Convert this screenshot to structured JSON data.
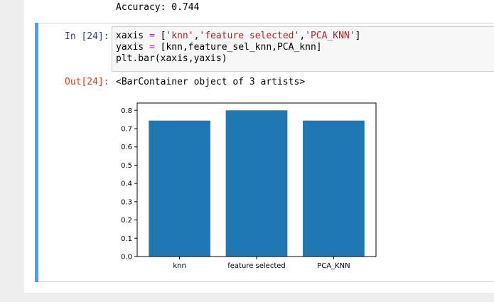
{
  "notebook": {
    "prev_output": "Accuracy: 0.744",
    "cell": {
      "in_prompt": "In [24]:",
      "out_prompt": "Out[24]:",
      "code": {
        "line1": {
          "var": "xaxis",
          "op": " = ",
          "open": "[",
          "s1": "'knn'",
          "c1": ",",
          "s2": "'feature selected'",
          "c2": ",",
          "s3": "'PCA_KNN'",
          "close": "]"
        },
        "line2": {
          "var": "yaxis",
          "op": " = ",
          "rest": "[knn,feature_sel_knn,PCA_knn]"
        },
        "line3": "plt.bar(xaxis,yaxis)"
      },
      "output_text": "<BarContainer object of 3 artists>"
    }
  },
  "colors": {
    "cell_bar": "#42a5f5",
    "bar": "#1f77b4",
    "in_prompt": "#303f9f",
    "out_prompt": "#d84315"
  },
  "chart_data": {
    "type": "bar",
    "categories": [
      "knn",
      "feature selected",
      "PCA_KNN"
    ],
    "values": [
      0.744,
      0.8,
      0.744
    ],
    "ylim": [
      0,
      0.84
    ],
    "yticks": [
      0.0,
      0.1,
      0.2,
      0.3,
      0.4,
      0.5,
      0.6,
      0.7,
      0.8
    ],
    "ytick_labels": [
      "0.0",
      "0.1",
      "0.2",
      "0.3",
      "0.4",
      "0.5",
      "0.6",
      "0.7",
      "0.8"
    ],
    "grid": false,
    "title": "",
    "xlabel": "",
    "ylabel": ""
  }
}
